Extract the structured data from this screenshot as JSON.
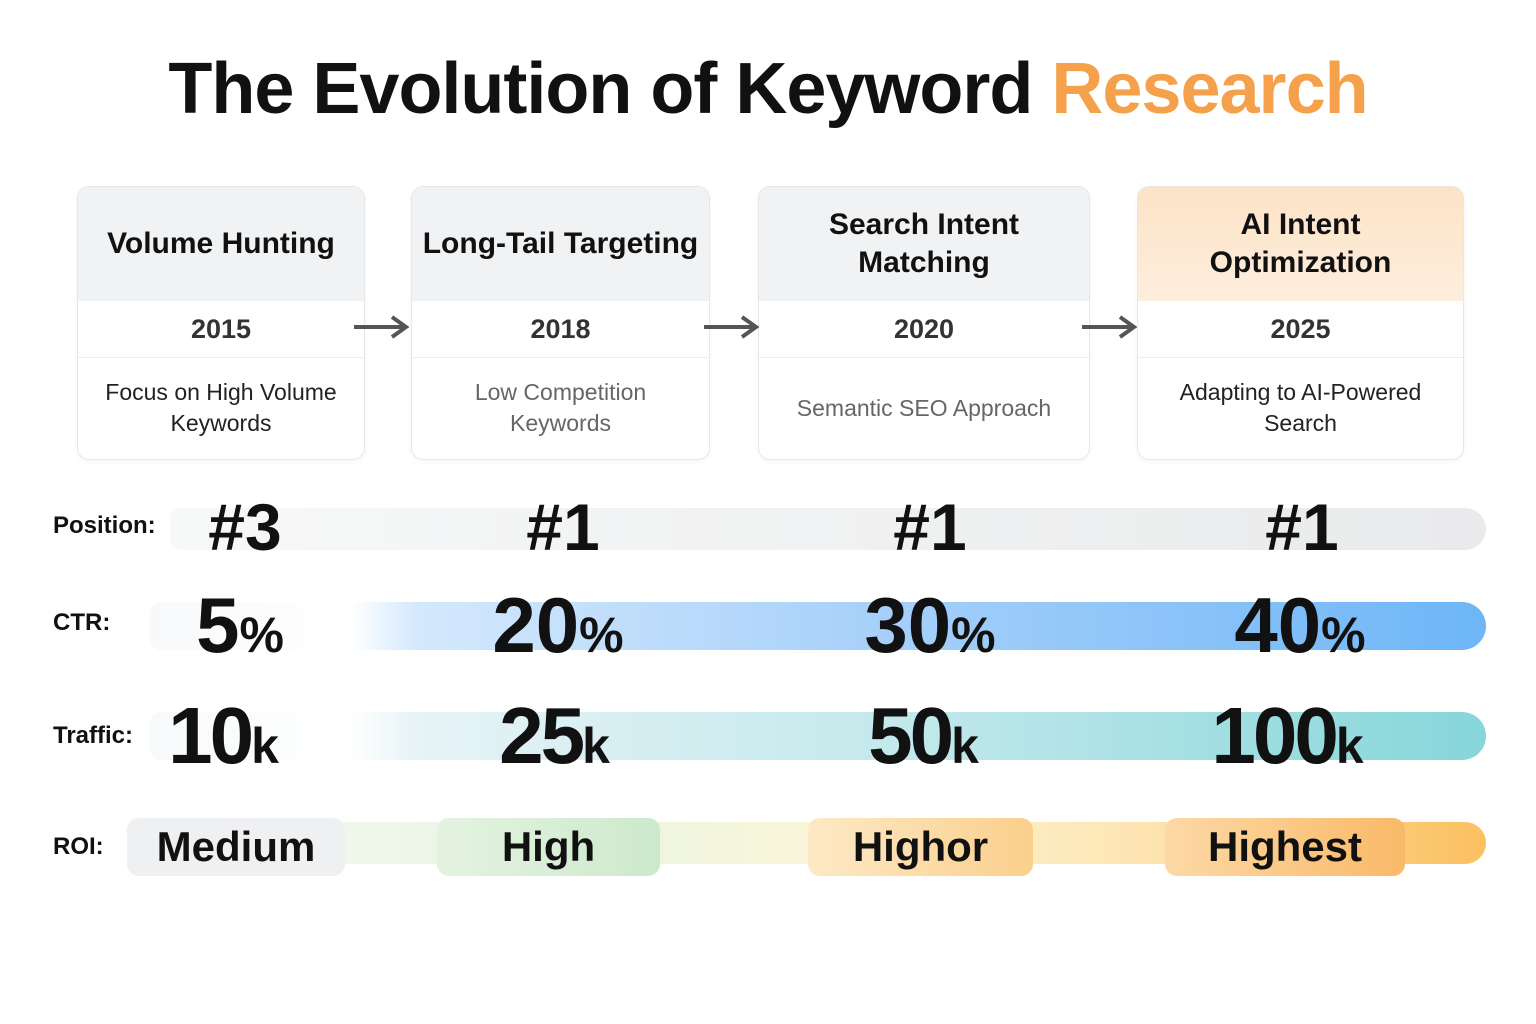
{
  "title": {
    "main": "The Evolution of Keyword ",
    "accent": "Research",
    "accent_color": "#F5A04A"
  },
  "stages": [
    {
      "name": "Volume Hunting",
      "year": "2015",
      "description": "Focus on High Volume Keywords"
    },
    {
      "name": "Long-Tail Targeting",
      "year": "2018",
      "description": "Low Competition Keywords"
    },
    {
      "name": "Search Intent Matching",
      "year": "2020",
      "description": "Semantic SEO Approach"
    },
    {
      "name": "AI Intent Optimization",
      "year": "2025",
      "description": "Adapting to AI-Powered Search"
    }
  ],
  "metrics": {
    "position": {
      "label": "Position:",
      "values": [
        "#3",
        "#1",
        "#1",
        "#1"
      ]
    },
    "ctr": {
      "label": "CTR:",
      "values": [
        "5",
        "20",
        "30",
        "40"
      ],
      "unit": "%",
      "color": "#70B8F8"
    },
    "traffic": {
      "label": "Traffic:",
      "values": [
        "10",
        "25",
        "50",
        "100"
      ],
      "unit": "k",
      "color": "#86D6DA"
    },
    "roi": {
      "label": "ROI:",
      "values": [
        "Medium",
        "High",
        "Highor",
        "Highest"
      ],
      "color": "#FBC060"
    }
  }
}
